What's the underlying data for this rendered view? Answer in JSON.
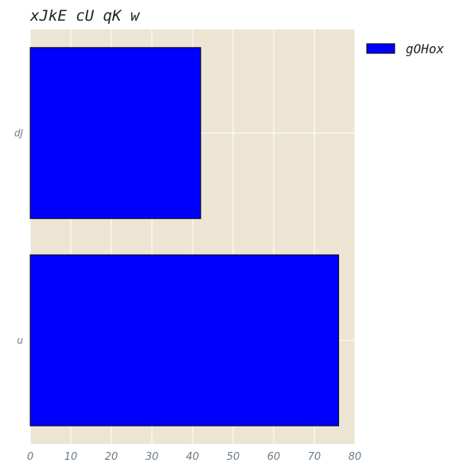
{
  "chart_data": {
    "type": "bar",
    "orientation": "horizontal",
    "title": "xJkE cU qK w",
    "categories": [
      "dJ",
      "u"
    ],
    "series": [
      {
        "name": "gOHox",
        "values": [
          42,
          76
        ],
        "color": "#0000ff"
      }
    ],
    "xlim": [
      0,
      80
    ],
    "xticks": [
      0,
      10,
      20,
      30,
      40,
      50,
      60,
      70,
      80
    ],
    "xlabel": "",
    "ylabel": "",
    "grid": true,
    "legend_position": "top-right-outside",
    "background_color": "#ede5d4",
    "grid_color": "#ffffff",
    "tick_label_color": "#6b7b88",
    "edge_color": "#000000"
  }
}
